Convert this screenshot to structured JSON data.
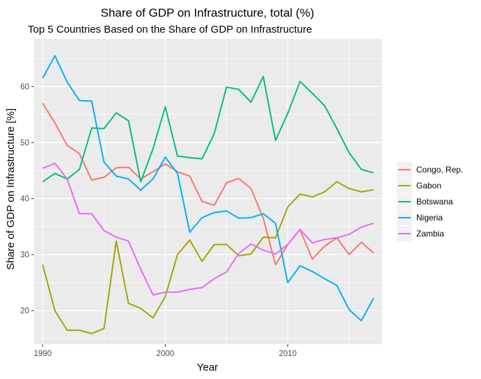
{
  "chart_data": {
    "type": "line",
    "title": "Share of GDP on Infrastructure, total (%)",
    "subtitle": "Top 5 Countries Based on the Share of GDP on Infrastructure",
    "xlabel": "Year",
    "ylabel": "Share of GDP on Infrastructure [%]",
    "xlim": [
      1989.3,
      2017.7
    ],
    "ylim": [
      14.0,
      68.5
    ],
    "x_ticks": [
      1990,
      2000,
      2010
    ],
    "y_ticks": [
      20,
      30,
      40,
      50,
      60
    ],
    "grid": true,
    "legend_position": "right",
    "x": [
      1990,
      1991,
      1992,
      1993,
      1994,
      1995,
      1996,
      1997,
      1998,
      1999,
      2000,
      2001,
      2002,
      2003,
      2004,
      2005,
      2006,
      2007,
      2008,
      2009,
      2010,
      2011,
      2012,
      2013,
      2014,
      2015,
      2016,
      2017
    ],
    "series": [
      {
        "name": "Congo, Rep.",
        "color": "#F8766D",
        "values": [
          57.0,
          53.5,
          49.5,
          48.0,
          43.3,
          43.8,
          45.5,
          45.6,
          43.5,
          44.8,
          46.2,
          44.8,
          44.0,
          39.5,
          38.8,
          42.8,
          43.6,
          41.8,
          36.5,
          28.2,
          31.8,
          34.5,
          29.2,
          31.5,
          33.0,
          30.0,
          32.2,
          30.3
        ]
      },
      {
        "name": "Gabon",
        "color": "#A3A500",
        "values": [
          28.2,
          20.0,
          16.5,
          16.5,
          15.9,
          16.8,
          32.4,
          21.3,
          20.4,
          18.7,
          22.5,
          30.0,
          32.6,
          28.8,
          31.8,
          31.8,
          29.8,
          30.1,
          33.1,
          33.0,
          38.5,
          40.8,
          40.3,
          41.2,
          43.0,
          41.8,
          41.2,
          41.6
        ]
      },
      {
        "name": "Botswana",
        "color": "#00BF7D",
        "values": [
          43.0,
          44.5,
          43.5,
          45.2,
          52.6,
          52.5,
          55.3,
          53.9,
          43.0,
          48.9,
          56.4,
          47.6,
          47.3,
          47.1,
          51.6,
          59.9,
          59.5,
          57.2,
          61.8,
          50.4,
          55.2,
          60.9,
          58.8,
          56.6,
          52.5,
          48.2,
          45.2,
          44.6
        ]
      },
      {
        "name": "Nigeria",
        "color": "#00B0F6",
        "values": [
          61.5,
          65.5,
          60.8,
          57.5,
          57.4,
          46.5,
          44.0,
          43.5,
          41.5,
          43.5,
          47.4,
          44.5,
          34.0,
          36.6,
          37.5,
          37.8,
          36.5,
          36.6,
          37.3,
          35.6,
          25.0,
          28.0,
          27.0,
          25.7,
          24.5,
          20.2,
          18.2,
          22.2
        ]
      },
      {
        "name": "Zambia",
        "color": "#E76BF3",
        "values": [
          45.4,
          46.3,
          43.5,
          37.3,
          37.3,
          34.3,
          33.1,
          32.4,
          27.4,
          22.8,
          23.3,
          23.3,
          23.8,
          24.1,
          25.7,
          26.9,
          30.2,
          31.9,
          30.8,
          30.1,
          31.8,
          34.5,
          32.1,
          32.7,
          33.0,
          33.6,
          34.9,
          35.6
        ]
      }
    ]
  }
}
